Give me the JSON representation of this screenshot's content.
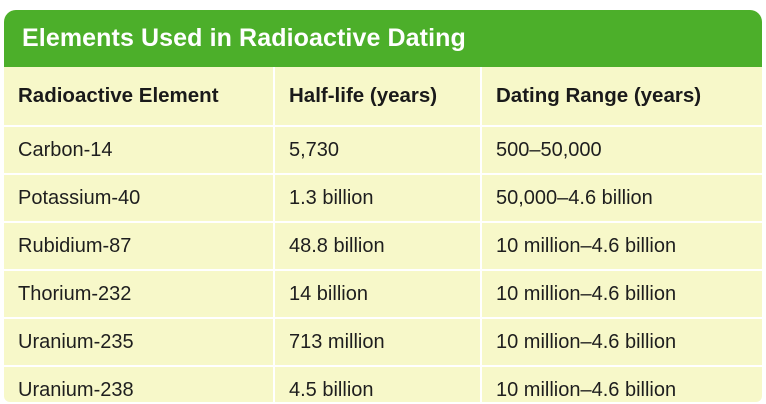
{
  "table": {
    "title": "Elements Used in Radioactive Dating",
    "headers": [
      "Radioactive Element",
      "Half-life (years)",
      "Dating Range (years)"
    ],
    "rows": [
      [
        "Carbon-14",
        "5,730",
        "500–50,000"
      ],
      [
        "Potassium-40",
        "1.3 billion",
        "50,000–4.6 billion"
      ],
      [
        "Rubidium-87",
        "48.8 billion",
        "10 million–4.6 billion"
      ],
      [
        "Thorium-232",
        "14 billion",
        "10 million–4.6 billion"
      ],
      [
        "Uranium-235",
        "713 million",
        "10 million–4.6 billion"
      ],
      [
        "Uranium-238",
        "4.5 billion",
        "10 million–4.6 billion"
      ]
    ]
  },
  "colors": {
    "title_bar": "#4caf2a",
    "table_background": "#f7f8c9",
    "grid_lines": "#ffffff"
  }
}
